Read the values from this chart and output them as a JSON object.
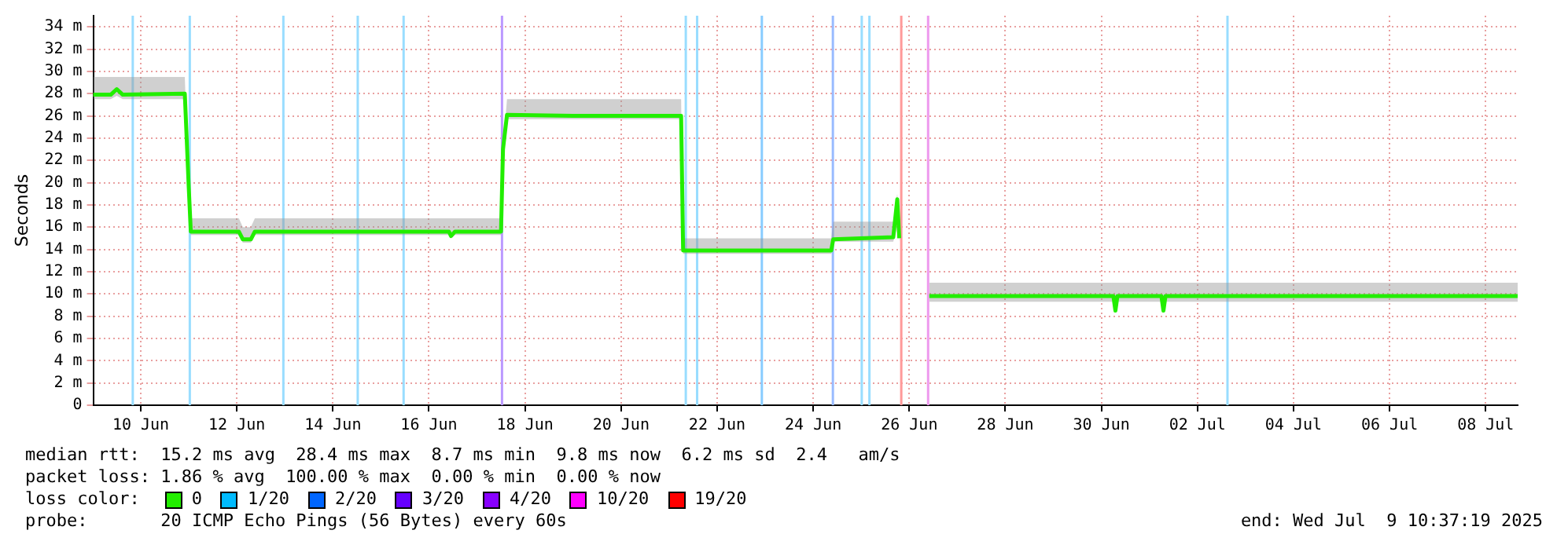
{
  "chart_data": {
    "type": "line",
    "ylabel": "Seconds",
    "legend_title": "loss color:",
    "legend": "bottom",
    "grid": true,
    "marker": "none",
    "line_style": "solid",
    "xlim": [
      "2025-06-09T00:15",
      "2025-07-08T16:00"
    ],
    "xticks": [
      {
        "value": "2025-06-10",
        "label": "10 Jun"
      },
      {
        "value": "2025-06-12",
        "label": "12 Jun"
      },
      {
        "value": "2025-06-14",
        "label": "14 Jun"
      },
      {
        "value": "2025-06-16",
        "label": "16 Jun"
      },
      {
        "value": "2025-06-18",
        "label": "18 Jun"
      },
      {
        "value": "2025-06-20",
        "label": "20 Jun"
      },
      {
        "value": "2025-06-22",
        "label": "22 Jun"
      },
      {
        "value": "2025-06-24",
        "label": "24 Jun"
      },
      {
        "value": "2025-06-26",
        "label": "26 Jun"
      },
      {
        "value": "2025-06-28",
        "label": "28 Jun"
      },
      {
        "value": "2025-06-30",
        "label": "30 Jun"
      },
      {
        "value": "2025-07-02",
        "label": "02 Jul"
      },
      {
        "value": "2025-07-04",
        "label": "04 Jul"
      },
      {
        "value": "2025-07-06",
        "label": "06 Jul"
      },
      {
        "value": "2025-07-08",
        "label": "08 Jul"
      }
    ],
    "ylim": [
      0,
      35
    ],
    "yticks": [
      0,
      {
        "value": 2,
        "label": "2 m"
      },
      {
        "value": 4,
        "label": "4 m"
      },
      {
        "value": 6,
        "label": "6 m"
      },
      {
        "value": 8,
        "label": "8 m"
      },
      {
        "value": 10,
        "label": "10 m"
      },
      {
        "value": 12,
        "label": "12 m"
      },
      {
        "value": 14,
        "label": "14 m"
      },
      {
        "value": 16,
        "label": "16 m"
      },
      {
        "value": 18,
        "label": "18 m"
      },
      {
        "value": 20,
        "label": "20 m"
      },
      {
        "value": 22,
        "label": "22 m"
      },
      {
        "value": 24,
        "label": "24 m"
      },
      {
        "value": 26,
        "label": "26 m"
      },
      {
        "value": 28,
        "label": "28 m"
      },
      {
        "value": 30,
        "label": "30 m"
      },
      {
        "value": 32,
        "label": "32 m"
      },
      {
        "value": 34,
        "label": "34 m"
      }
    ],
    "series": [
      {
        "name": "0",
        "color": "#22ee00",
        "x": [
          "2025-06-09T00:15",
          "2025-06-09T09:00",
          "2025-06-09T12:00",
          "2025-06-09T15:00",
          "2025-06-10T22:00",
          "2025-06-11T00:00",
          "2025-06-11T01:00",
          "2025-06-12T01:00",
          "2025-06-12T03:00",
          "2025-06-12T07:00",
          "2025-06-12T09:00",
          "2025-06-16T10:00",
          "2025-06-16T11:00",
          "2025-06-16T13:00",
          "2025-06-17T12:00",
          "2025-06-17T13:00",
          "2025-06-17T15:00",
          "2025-06-19T00:00",
          "2025-06-21T06:00",
          "2025-06-21T07:00",
          "2025-06-24T09:00",
          "2025-06-24T10:00",
          "2025-06-25T16:00",
          "2025-06-25T18:00",
          "2025-06-25T19:00",
          "2025-06-25T20:00",
          "2025-06-26T10:00",
          "2025-06-30T06:00",
          "2025-06-30T07:00",
          "2025-06-30T08:00",
          "2025-07-01T06:00",
          "2025-07-01T07:00",
          "2025-07-01T08:00",
          "2025-07-08T16:00"
        ],
        "values": [
          27.9,
          27.9,
          28.4,
          27.9,
          28,
          19.5,
          15.6,
          15.6,
          14.9,
          14.9,
          15.6,
          15.6,
          15.2,
          15.6,
          15.6,
          23,
          26.1,
          26,
          26,
          13.9,
          13.9,
          14.9,
          15.1,
          18.5,
          15,
          null,
          9.8,
          9.8,
          8.5,
          9.8,
          9.8,
          8.5,
          9.8,
          9.8
        ],
        "lower": [
          27.5,
          27.5,
          27.8,
          27.5,
          27.5,
          19.5,
          15.3,
          15.3,
          14.6,
          14.6,
          15.3,
          15.3,
          15,
          15.3,
          15.3,
          23,
          25.7,
          25.7,
          25.7,
          13.6,
          13.6,
          14.7,
          14.7,
          16,
          14.7,
          null,
          9.3,
          9.3,
          8.3,
          9.3,
          9.3,
          8.3,
          9.3,
          9.3
        ],
        "upper": [
          29.5,
          29.5,
          29.5,
          29.5,
          29.5,
          19.5,
          16.8,
          16.8,
          16,
          16,
          16.8,
          16.8,
          16.8,
          16.8,
          16.8,
          23,
          27.5,
          27.5,
          27.5,
          15,
          15,
          16.5,
          16.5,
          19,
          16.5,
          null,
          11,
          11,
          11,
          11,
          11,
          11,
          11,
          11
        ]
      },
      {
        "name": "1/20",
        "color": "#00bbff"
      },
      {
        "name": "2/20",
        "color": "#0066ff"
      },
      {
        "name": "3/20",
        "color": "#6600ff"
      },
      {
        "name": "4/20",
        "color": "#8800ff"
      },
      {
        "name": "10/20",
        "color": "#ff00ff"
      },
      {
        "name": "19/20",
        "color": "#ff0000"
      }
    ],
    "ref_lines": [
      {
        "axis": "x",
        "value": "2025-06-09T20:00",
        "color": "#99ddff"
      },
      {
        "axis": "x",
        "value": "2025-06-11T00:30",
        "color": "#99ddff"
      },
      {
        "axis": "x",
        "value": "2025-06-12T23:15",
        "color": "#99ddff"
      },
      {
        "axis": "x",
        "value": "2025-06-14T12:25",
        "color": "#99ddff"
      },
      {
        "axis": "x",
        "value": "2025-06-15T11:20",
        "color": "#99ddff"
      },
      {
        "axis": "x",
        "value": "2025-06-17T12:30",
        "color": "#bb99ff"
      },
      {
        "axis": "x",
        "value": "2025-06-21T08:20",
        "color": "#99ddff"
      },
      {
        "axis": "x",
        "value": "2025-06-21T14:00",
        "color": "#99ddff"
      },
      {
        "axis": "x",
        "value": "2025-06-22T22:20",
        "color": "#88ccff"
      },
      {
        "axis": "x",
        "value": "2025-06-24T09:50",
        "color": "#99bbff"
      },
      {
        "axis": "x",
        "value": "2025-06-25T00:15",
        "color": "#99ddff"
      },
      {
        "axis": "x",
        "value": "2025-06-25T04:05",
        "color": "#99ddff"
      },
      {
        "axis": "x",
        "value": "2025-06-25T20:00",
        "color": "#ff9999"
      },
      {
        "axis": "x",
        "value": "2025-06-26T09:25",
        "color": "#ee99ee"
      },
      {
        "axis": "x",
        "value": "2025-07-02T15:00",
        "color": "#99ddff"
      }
    ],
    "annotations": [
      "median rtt:  15.2 ms avg  28.4 ms max  8.7 ms min  9.8 ms now  6.2 ms sd  2.4   am/s",
      "packet loss: 1.86 % avg  100.00 % max  0.00 % min  0.00 % now",
      "probe:       20 ICMP Echo Pings (56 Bytes) every 60s",
      "end: Wed Jul  9 10:37:19 2025"
    ]
  }
}
